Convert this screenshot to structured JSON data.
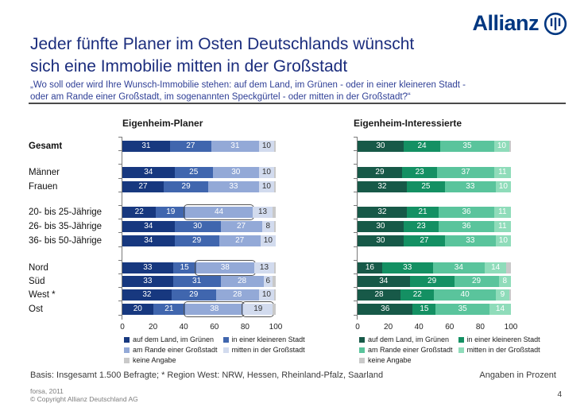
{
  "logo": {
    "text": "Allianz",
    "color": "#003781"
  },
  "header": {
    "title_line1": "Jeder fünfte Planer im Osten Deutschlands wünscht",
    "title_line2": "sich eine Immobilie mitten in der Großstadt",
    "subtitle_line1": "„Wo soll oder wird Ihre Wunsch-Immobilie stehen: auf dem Land, im Grünen - oder in einer kleineren Stadt -",
    "subtitle_line2": "oder am Rande einer Großstadt, im sogenannten Speckgürtel - oder mitten in der Großstadt?“"
  },
  "row_labels": [
    {
      "label": "Gesamt",
      "bold": true
    },
    {
      "label": "Männer",
      "bold": false
    },
    {
      "label": "Frauen",
      "bold": false
    },
    {
      "label": "20- bis 25-Jährige",
      "bold": false
    },
    {
      "label": "26- bis 35-Jährige",
      "bold": false
    },
    {
      "label": "36- bis 50-Jährige",
      "bold": false
    },
    {
      "label": "Nord",
      "bold": false
    },
    {
      "label": "Süd",
      "bold": false
    },
    {
      "label": "West *",
      "bold": false
    },
    {
      "label": "Ost",
      "bold": false
    }
  ],
  "chart_data": [
    {
      "type": "bar",
      "orientation": "horizontal",
      "stacked": true,
      "title": "Eigenheim-Planer",
      "categories": [
        "Gesamt",
        "Männer",
        "Frauen",
        "20- bis 25-Jährige",
        "26- bis 35-Jährige",
        "36- bis 50-Jährige",
        "Nord",
        "Süd",
        "West *",
        "Ost"
      ],
      "series": [
        {
          "name": "auf dem Land, im Grünen",
          "values": [
            31,
            34,
            27,
            22,
            34,
            34,
            33,
            33,
            32,
            20
          ]
        },
        {
          "name": "in einer kleineren Stadt",
          "values": [
            27,
            25,
            29,
            19,
            30,
            29,
            15,
            31,
            29,
            21
          ]
        },
        {
          "name": "am Rande einer Großstadt",
          "values": [
            31,
            30,
            33,
            44,
            27,
            27,
            38,
            28,
            28,
            38
          ]
        },
        {
          "name": "mitten in der Großstadt",
          "values": [
            10,
            10,
            10,
            13,
            8,
            10,
            13,
            6,
            10,
            19
          ]
        },
        {
          "name": "keine Angabe",
          "values": [
            1,
            1,
            1,
            2,
            1,
            0,
            1,
            2,
            1,
            2
          ]
        }
      ],
      "palette": [
        "#17387f",
        "#4066ae",
        "#93a9d7",
        "#d2dbee",
        "#c9c9c9"
      ],
      "value_colors": [
        "#ffffff",
        "#ffffff",
        "#ffffff",
        "#333333",
        ""
      ],
      "xlim": [
        0,
        100
      ],
      "xticks": [
        0,
        20,
        40,
        60,
        80,
        100
      ],
      "highlights": [
        {
          "row": 3,
          "seg": 2
        },
        {
          "row": 6,
          "seg": 2
        },
        {
          "row": 9,
          "seg": 2
        },
        {
          "row": 9,
          "seg": 3
        }
      ]
    },
    {
      "type": "bar",
      "orientation": "horizontal",
      "stacked": true,
      "title": "Eigenheim-Interessierte",
      "categories": [
        "Gesamt",
        "Männer",
        "Frauen",
        "20- bis 25-Jährige",
        "26- bis 35-Jährige",
        "36- bis 50-Jährige",
        "Nord",
        "Süd",
        "West *",
        "Ost"
      ],
      "series": [
        {
          "name": "auf dem Land, im Grünen",
          "values": [
            30,
            29,
            32,
            32,
            30,
            30,
            16,
            34,
            28,
            36
          ]
        },
        {
          "name": "in einer kleineren Stadt",
          "values": [
            24,
            23,
            25,
            21,
            23,
            27,
            33,
            29,
            22,
            15
          ]
        },
        {
          "name": "am Rande einer Großstadt",
          "values": [
            35,
            37,
            33,
            36,
            36,
            33,
            34,
            29,
            40,
            35
          ]
        },
        {
          "name": "mitten in der Großstadt",
          "values": [
            10,
            11,
            10,
            11,
            11,
            10,
            14,
            8,
            9,
            14
          ]
        },
        {
          "name": "keine Angabe",
          "values": [
            1,
            0,
            0,
            0,
            0,
            0,
            3,
            0,
            1,
            0
          ]
        }
      ],
      "palette": [
        "#175948",
        "#149063",
        "#5ac49c",
        "#8fdcba",
        "#c9c9c9"
      ],
      "value_colors": [
        "#ffffff",
        "#ffffff",
        "#ffffff",
        "#ffffff",
        ""
      ],
      "xlim": [
        0,
        100
      ],
      "xticks": [
        0,
        20,
        40,
        60,
        80,
        100
      ],
      "highlights": []
    }
  ],
  "footer": {
    "basis": "Basis: Insgesamt 1.500 Befragte; * Region West: NRW, Hessen, Rheinland-Pfalz, Saarland",
    "unit_note": "Angaben in Prozent",
    "source": "forsa, 2011",
    "copyright": "© Copyright Allianz Deutschland AG",
    "page_number": "4"
  }
}
